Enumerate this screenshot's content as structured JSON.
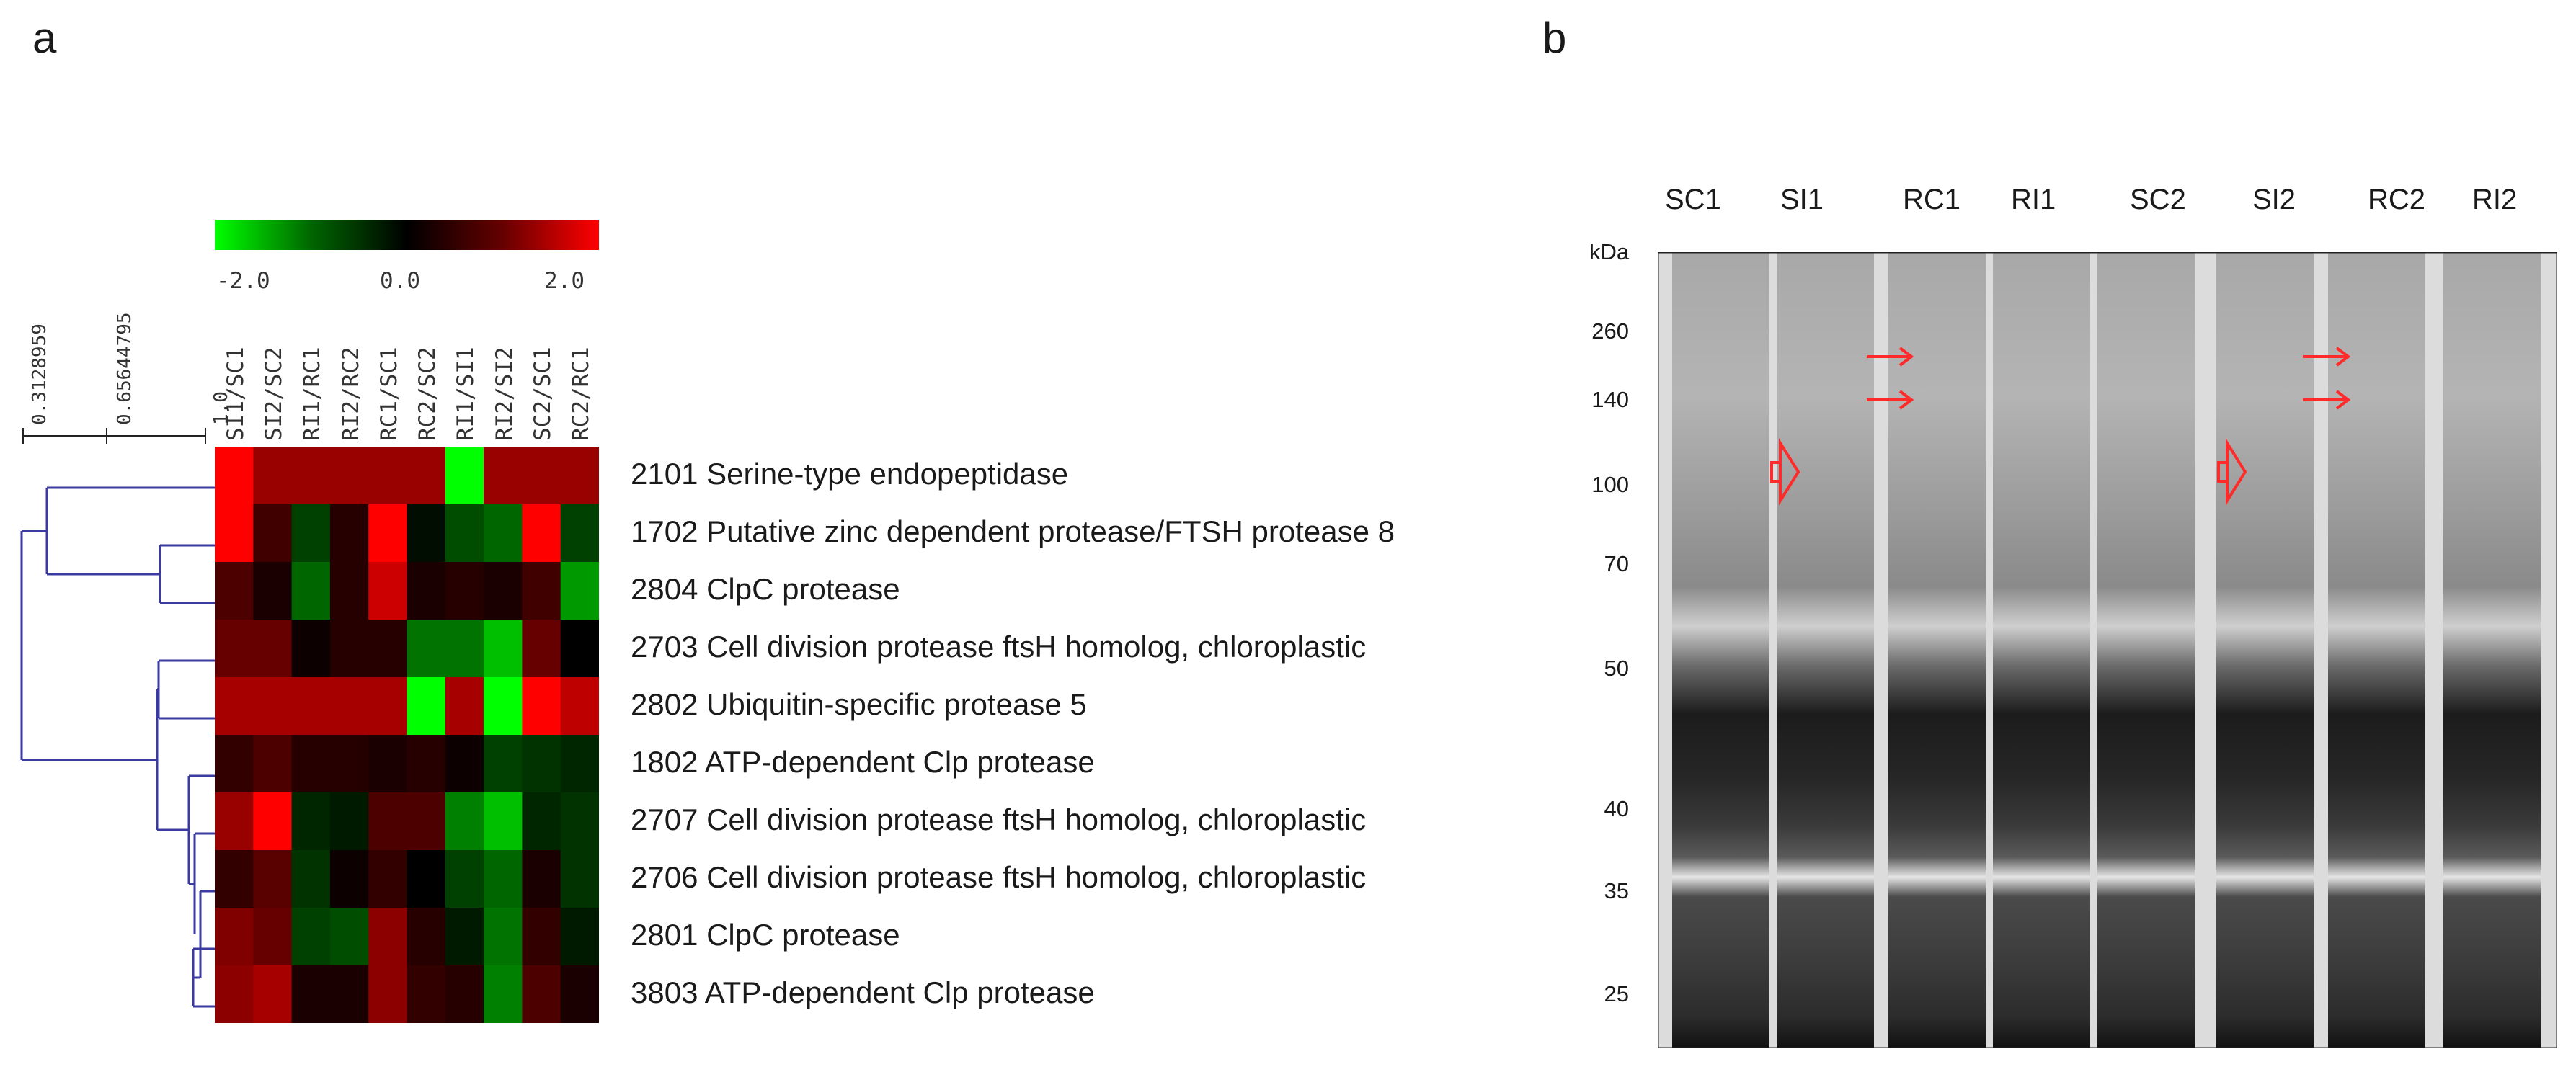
{
  "panel_a_label": "a",
  "panel_b_label": "b",
  "dendro_scale": [
    "0.3128959",
    "0.65644795",
    "1.0"
  ],
  "color_scale": {
    "ticks": [
      "-2.0",
      "0.0",
      "2.0"
    ],
    "low": "#00ff00",
    "mid": "#000000",
    "high": "#ff0000"
  },
  "columns": [
    "SI1/SC1",
    "SI2/SC2",
    "RI1/RC1",
    "RI2/RC2",
    "RC1/SC1",
    "RC2/SC2",
    "RI1/SI1",
    "RI2/SI2",
    "SC2/SC1",
    "RC2/RC1"
  ],
  "rows": [
    "2101 Serine-type endopeptidase",
    "1702 Putative zinc dependent protease/FTSH protease 8",
    "2804 ClpC protease",
    "2703 Cell division protease ftsH homolog, chloroplastic",
    "2802 Ubiquitin-specific protease 5",
    "1802 ATP-dependent Clp protease",
    "2707 Cell division protease ftsH homolog, chloroplastic",
    "2706 Cell division protease ftsH homolog, chloroplastic",
    "2801 ClpC protease",
    "3803 ATP-dependent Clp protease"
  ],
  "chart_data": {
    "type": "heatmap",
    "scale_range": [
      -2.0,
      2.0
    ],
    "x": [
      "SI1/SC1",
      "SI2/SC2",
      "RI1/RC1",
      "RI2/RC2",
      "RC1/SC1",
      "RC2/SC2",
      "RI1/SI1",
      "RI2/SI2",
      "SC2/SC1",
      "RC2/RC1"
    ],
    "y": [
      "2101",
      "1702",
      "2804",
      "2703",
      "2802",
      "1802",
      "2707",
      "2706",
      "2801",
      "3803"
    ],
    "values": [
      [
        2.0,
        1.2,
        1.2,
        1.2,
        1.2,
        1.2,
        -2.0,
        1.2,
        1.2,
        1.2
      ],
      [
        2.0,
        0.5,
        -0.5,
        0.3,
        2.0,
        -0.1,
        -0.6,
        -0.8,
        2.0,
        -0.5
      ],
      [
        0.6,
        0.2,
        -0.8,
        0.3,
        1.6,
        0.2,
        0.3,
        0.2,
        0.5,
        -1.2
      ],
      [
        0.8,
        0.8,
        0.1,
        0.3,
        0.3,
        -0.9,
        -0.9,
        -1.5,
        0.8,
        0.0
      ],
      [
        1.3,
        1.3,
        1.3,
        1.3,
        1.3,
        -2.0,
        1.3,
        -2.0,
        2.0,
        1.5
      ],
      [
        0.4,
        0.6,
        0.3,
        0.3,
        0.2,
        0.3,
        0.1,
        -0.5,
        -0.4,
        -0.3
      ],
      [
        1.2,
        2.0,
        -0.3,
        -0.2,
        0.6,
        0.6,
        -1.0,
        -1.5,
        -0.3,
        -0.4
      ],
      [
        0.4,
        0.7,
        -0.4,
        0.1,
        0.4,
        0.0,
        -0.5,
        -0.8,
        0.2,
        -0.4
      ],
      [
        1.0,
        0.8,
        -0.5,
        -0.6,
        1.1,
        0.3,
        -0.2,
        -0.9,
        0.4,
        -0.2
      ],
      [
        1.1,
        1.3,
        0.2,
        0.2,
        1.1,
        0.4,
        0.3,
        -1.0,
        0.6,
        0.2
      ]
    ]
  },
  "gel": {
    "kda_label": "kDa",
    "lanes": [
      "SC1",
      "SI1",
      "RC1",
      "RI1",
      "SC2",
      "SI2",
      "RC2",
      "RI2"
    ],
    "markers": [
      "260",
      "140",
      "100",
      "70",
      "50",
      "40",
      "35",
      "25"
    ],
    "arrow_color": "#ff2a2a"
  }
}
